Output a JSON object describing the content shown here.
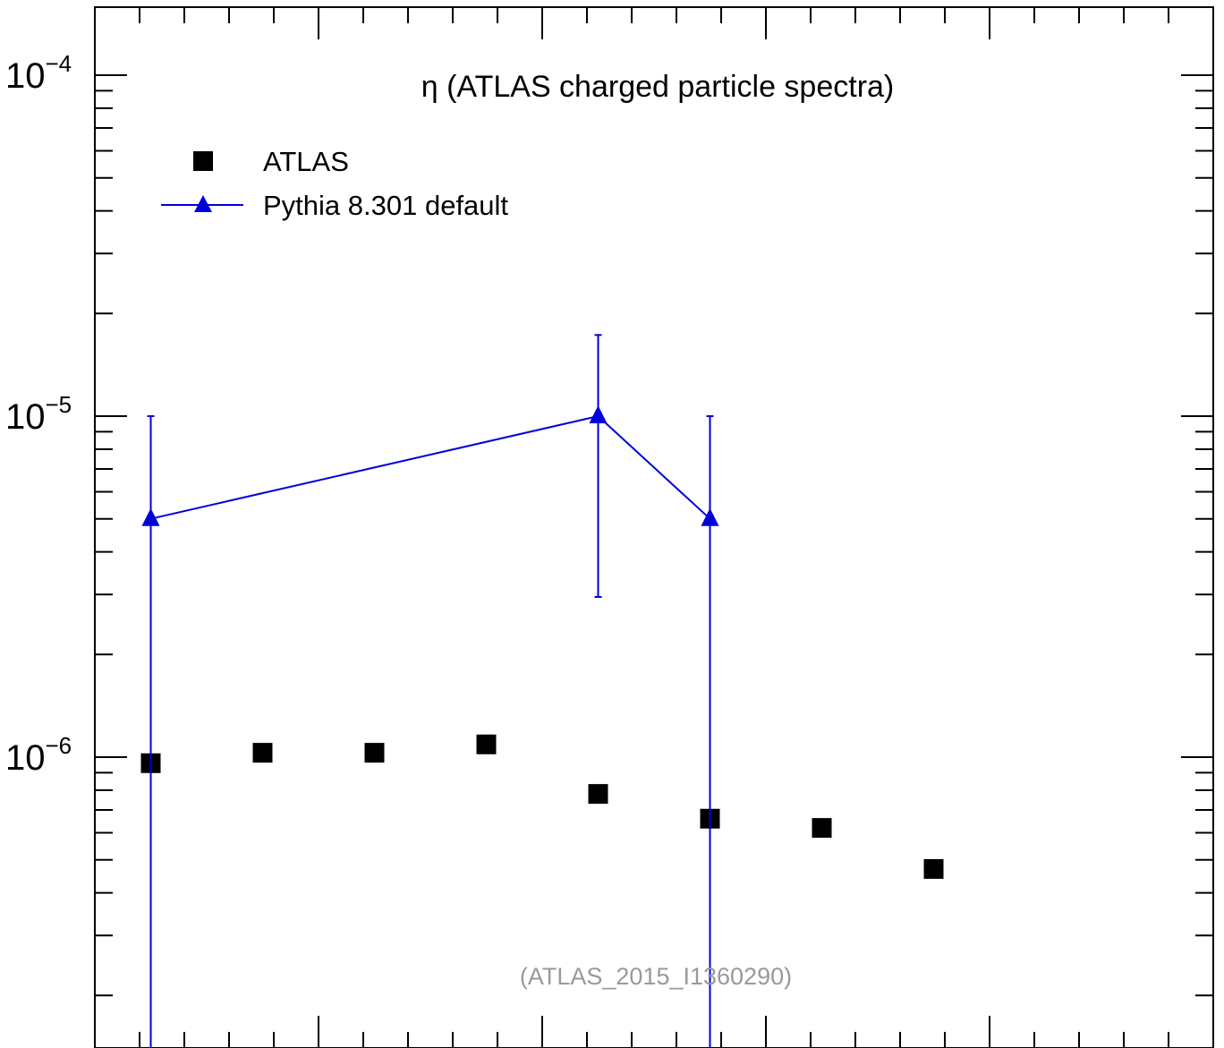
{
  "chart_data": {
    "type": "scatter",
    "title": "η (ATLAS charged particle spectra)",
    "annotation": "(ATLAS_2015_I1360290)",
    "xlabel": "",
    "ylabel": "",
    "y_scale": "log",
    "ylim": [
      1.6e-07,
      0.00017
    ],
    "xlim": [
      -2.5,
      2.5
    ],
    "y_tick_labels": [
      {
        "value": 0.0001,
        "base": "10",
        "exponent": "−4"
      },
      {
        "value": 1e-05,
        "base": "10",
        "exponent": "−5"
      },
      {
        "value": 1e-06,
        "base": "10",
        "exponent": "−6"
      }
    ],
    "grid": false,
    "legend_position": "top-left",
    "series": [
      {
        "name": "ATLAS",
        "marker": "square",
        "color": "#000000",
        "x": [
          -2.25,
          -1.75,
          -1.25,
          -0.75,
          -0.25,
          0.25,
          0.75,
          1.25
        ],
        "y": [
          9.6e-07,
          1.03e-06,
          1.03e-06,
          1.09e-06,
          7.8e-07,
          6.6e-07,
          6.2e-07,
          4.7e-07
        ]
      },
      {
        "name": "Pythia 8.301 default",
        "marker": "triangle",
        "color": "#0000dd",
        "line": true,
        "x": [
          -2.25,
          -0.25,
          0.25
        ],
        "y": [
          5e-06,
          1e-05,
          5e-06
        ],
        "y_err_up": [
          1e-05,
          1.73e-05,
          1e-05
        ],
        "y_err_down": [
          1e-09,
          2.95e-06,
          1e-09
        ]
      }
    ]
  }
}
